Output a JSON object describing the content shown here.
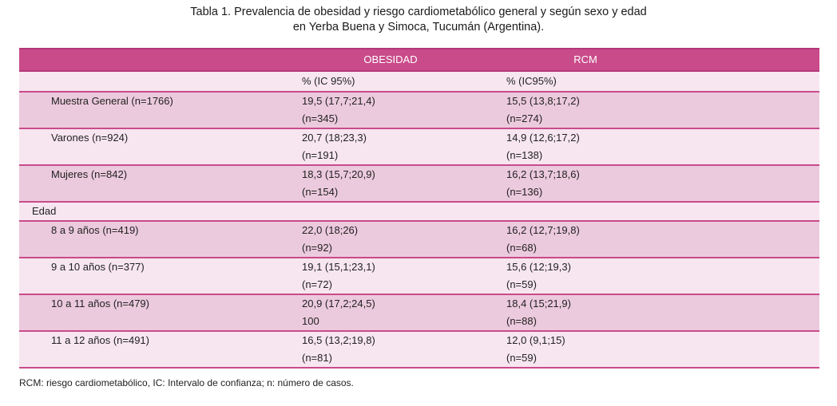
{
  "caption": {
    "line1": "Tabla 1. Prevalencia de obesidad y riesgo cardiometabólico general y según sexo y edad",
    "line2": "en Yerba Buena y Simoca, Tucumán (Argentina)."
  },
  "header": {
    "col1": "",
    "col2": "OBESIDAD",
    "col3": "RCM"
  },
  "subheader": {
    "col2": "% (IC 95%)",
    "col3": "% (IC95%)"
  },
  "rows": [
    {
      "label": "Muestra General (n=1766)",
      "ob": "19,5 (17,7;21,4)",
      "ob_n": "(n=345)",
      "rcm": "15,5 (13,8;17,2)",
      "rcm_n": "(n=274)"
    },
    {
      "label": "Varones (n=924)",
      "ob": "20,7 (18;23,3)",
      "ob_n": "(n=191)",
      "rcm": "14,9 (12,6;17,2)",
      "rcm_n": "(n=138)"
    },
    {
      "label": "Mujeres (n=842)",
      "ob": "18,3 (15,7;20,9)",
      "ob_n": "(n=154)",
      "rcm": "16,2 (13,7;18,6)",
      "rcm_n": "(n=136)"
    }
  ],
  "edad_label": "Edad",
  "edad_rows": [
    {
      "label": "8 a 9 años (n=419)",
      "ob": "22,0 (18;26)",
      "ob_n": "(n=92)",
      "rcm": "16,2 (12,7;19,8)",
      "rcm_n": "(n=68)"
    },
    {
      "label": "9 a 10 años (n=377)",
      "ob": "19,1 (15,1;23,1)",
      "ob_n": "(n=72)",
      "rcm": "15,6 (12;19,3)",
      "rcm_n": "(n=59)"
    },
    {
      "label": "10 a 11 años (n=479)",
      "ob": "20,9 (17,2;24,5)",
      "ob_n": "100",
      "rcm": "18,4 (15;21,9)",
      "rcm_n": "(n=88)"
    },
    {
      "label": "11 a 12 años (n=491)",
      "ob": "16,5 (13,2;19,8)",
      "ob_n": "(n=81)",
      "rcm": "12,0 (9,1;15)",
      "rcm_n": "(n=59)"
    }
  ],
  "footnote": "RCM: riesgo cardiometabólico, IC: Intervalo de confianza; n: número de casos."
}
